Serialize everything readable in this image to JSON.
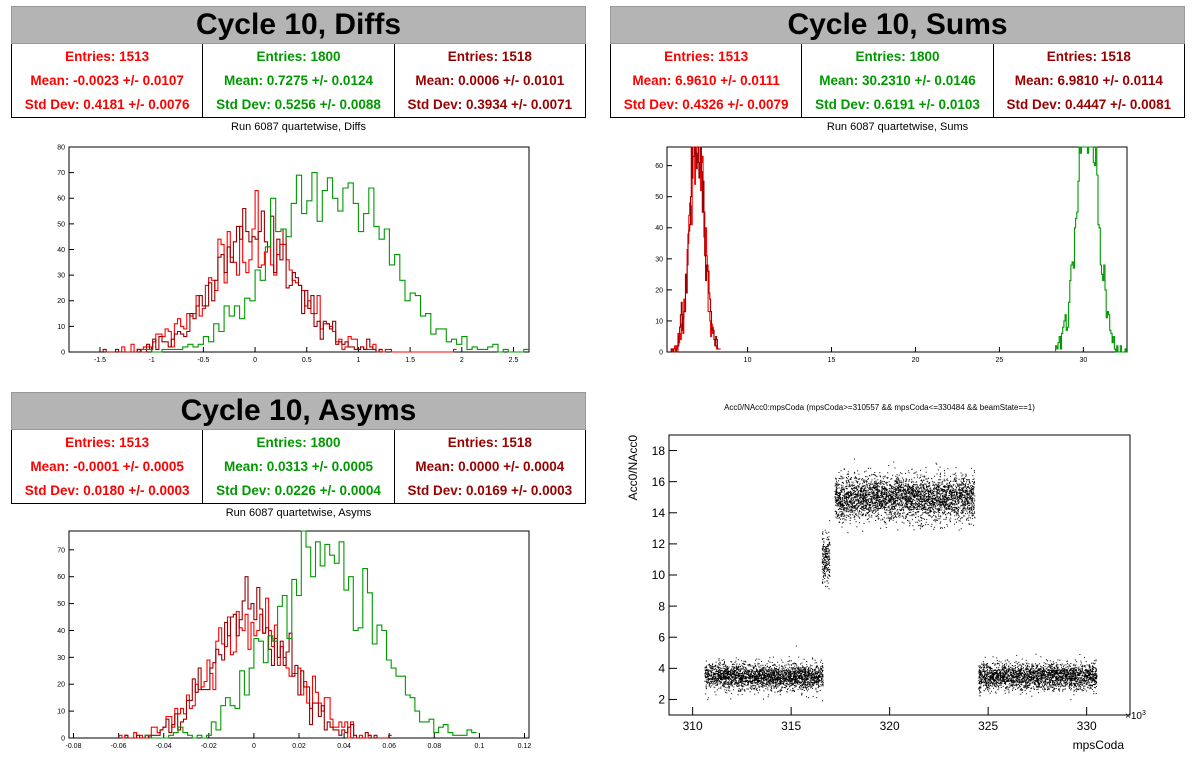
{
  "panels": {
    "diffs": {
      "banner": "Cycle 10, Diffs",
      "subtitle": "Run 6087 quartetwise, Diffs",
      "stats": [
        {
          "entries": "Entries: 1513",
          "mean": "Mean: -0.0023 +/- 0.0107",
          "std": "Std Dev: 0.4181 +/- 0.0076",
          "color": "#ff0000"
        },
        {
          "entries": "Entries: 1800",
          "mean": "Mean: 0.7275 +/- 0.0124",
          "std": "Std Dev: 0.5256 +/- 0.0088",
          "color": "#009900"
        },
        {
          "entries": "Entries: 1518",
          "mean": "Mean: 0.0006 +/- 0.0101",
          "std": "Std Dev: 0.3934 +/- 0.0071",
          "color": "#990000"
        }
      ]
    },
    "sums": {
      "banner": "Cycle 10, Sums",
      "subtitle": "Run 6087 quartetwise, Sums",
      "stats": [
        {
          "entries": "Entries: 1513",
          "mean": "Mean: 6.9610 +/- 0.0111",
          "std": "Std Dev: 0.4326 +/- 0.0079",
          "color": "#ff0000"
        },
        {
          "entries": "Entries: 1800",
          "mean": "Mean: 30.2310 +/- 0.0146",
          "std": "Std Dev: 0.6191 +/- 0.0103",
          "color": "#009900"
        },
        {
          "entries": "Entries: 1518",
          "mean": "Mean: 6.9810 +/- 0.0114",
          "std": "Std Dev: 0.4447 +/- 0.0081",
          "color": "#990000"
        }
      ]
    },
    "asyms": {
      "banner": "Cycle 10, Asyms",
      "subtitle": "Run 6087 quartetwise, Asyms",
      "stats": [
        {
          "entries": "Entries: 1513",
          "mean": "Mean: -0.0001 +/- 0.0005",
          "std": "Std Dev: 0.0180 +/- 0.0003",
          "color": "#ff0000"
        },
        {
          "entries": "Entries: 1800",
          "mean": "Mean: 0.0313 +/- 0.0005",
          "std": "Std Dev: 0.0226 +/- 0.0004",
          "color": "#009900"
        },
        {
          "entries": "Entries: 1518",
          "mean": "Mean: 0.0000 +/- 0.0004",
          "std": "Std Dev: 0.0169 +/- 0.0003",
          "color": "#990000"
        }
      ]
    }
  },
  "chart_data": [
    {
      "id": "diffs",
      "type": "histogram",
      "xlim": [
        -1.8,
        2.65
      ],
      "ylim": [
        0,
        80
      ],
      "xticks": [
        -1.5,
        -1,
        -0.5,
        0,
        0.5,
        1,
        1.5,
        2,
        2.5
      ],
      "xtick_labels": [
        "-1.5",
        "-1",
        "-0.5",
        "0",
        "0.5",
        "1",
        "1.5",
        "2",
        "2.5"
      ],
      "yticks": [
        0,
        10,
        20,
        30,
        40,
        50,
        60,
        70,
        80
      ],
      "ytick_labels": [
        "0",
        "10",
        "20",
        "30",
        "40",
        "50",
        "60",
        "70",
        "80"
      ],
      "series": [
        {
          "color": "#ff0000",
          "mean": -0.0023,
          "std": 0.4181,
          "entries": 1513,
          "bin": 0.03
        },
        {
          "color": "#990000",
          "mean": 0.0006,
          "std": 0.3934,
          "entries": 1518,
          "bin": 0.03
        },
        {
          "color": "#009900",
          "mean": 0.7275,
          "std": 0.5256,
          "entries": 1800,
          "bin": 0.05
        }
      ]
    },
    {
      "id": "sums",
      "type": "histogram",
      "xlim": [
        5.2,
        32.6
      ],
      "ylim": [
        0,
        66
      ],
      "xticks": [
        10,
        15,
        20,
        25,
        30
      ],
      "xtick_labels": [
        "10",
        "15",
        "20",
        "25",
        "30"
      ],
      "yticks": [
        0,
        10,
        20,
        30,
        40,
        50,
        60
      ],
      "ytick_labels": [
        "0",
        "10",
        "20",
        "30",
        "40",
        "50",
        "60"
      ],
      "series": [
        {
          "color": "#ff0000",
          "mean": 6.961,
          "std": 0.4326,
          "entries": 1513,
          "bin": 0.05
        },
        {
          "color": "#990000",
          "mean": 6.981,
          "std": 0.4447,
          "entries": 1518,
          "bin": 0.05
        },
        {
          "color": "#009900",
          "mean": 30.231,
          "std": 0.6191,
          "entries": 1800,
          "bin": 0.07
        }
      ]
    },
    {
      "id": "asyms",
      "type": "histogram",
      "xlim": [
        -0.082,
        0.122
      ],
      "ylim": [
        0,
        77
      ],
      "xticks": [
        -0.08,
        -0.06,
        -0.04,
        -0.02,
        0,
        0.02,
        0.04,
        0.06,
        0.08,
        0.1,
        0.12
      ],
      "xtick_labels": [
        "-0.08",
        "-0.06",
        "-0.04",
        "-0.02",
        "0",
        "0.02",
        "0.04",
        "0.06",
        "0.08",
        "0.1",
        "0.12"
      ],
      "yticks": [
        0,
        10,
        20,
        30,
        40,
        50,
        60,
        70
      ],
      "ytick_labels": [
        "0",
        "10",
        "20",
        "30",
        "40",
        "50",
        "60",
        "70"
      ],
      "series": [
        {
          "color": "#ff0000",
          "mean": -0.0001,
          "std": 0.018,
          "entries": 1513,
          "bin": 0.0013
        },
        {
          "color": "#990000",
          "mean": 0.0,
          "std": 0.0169,
          "entries": 1518,
          "bin": 0.0013
        },
        {
          "color": "#009900",
          "mean": 0.0313,
          "std": 0.0226,
          "entries": 1800,
          "bin": 0.0021
        }
      ]
    },
    {
      "id": "scatter",
      "type": "scatter",
      "title": "Acc0/NAcc0:mpsCoda (mpsCoda>=310557 && mpsCoda<=330484 && beamState==1)",
      "xlabel": "mpsCoda",
      "ylabel": "Acc0/NAcc0",
      "x_multiplier": "×10",
      "x_multiplier_exp": "3",
      "xlim": [
        308.8,
        332.2
      ],
      "ylim": [
        1,
        19
      ],
      "xticks": [
        310,
        315,
        320,
        325,
        330
      ],
      "xtick_labels": [
        "310",
        "315",
        "320",
        "325",
        "330"
      ],
      "yticks": [
        2,
        4,
        6,
        8,
        10,
        12,
        14,
        16,
        18
      ],
      "ytick_labels": [
        "2",
        "4",
        "6",
        "8",
        "10",
        "12",
        "14",
        "16",
        "18"
      ],
      "clusters": [
        {
          "x": [
            310.6,
            316.6
          ],
          "y_center": 3.5,
          "y_sd": 0.42,
          "count": 2600
        },
        {
          "x": [
            316.55,
            316.95
          ],
          "y_center": 11.0,
          "y_sd": 0.75,
          "count": 220
        },
        {
          "x": [
            317.2,
            324.3
          ],
          "y_center": 15.0,
          "y_sd": 0.7,
          "count": 3600
        },
        {
          "x": [
            324.5,
            330.5
          ],
          "y_center": 3.5,
          "y_sd": 0.42,
          "count": 2600
        }
      ]
    }
  ]
}
